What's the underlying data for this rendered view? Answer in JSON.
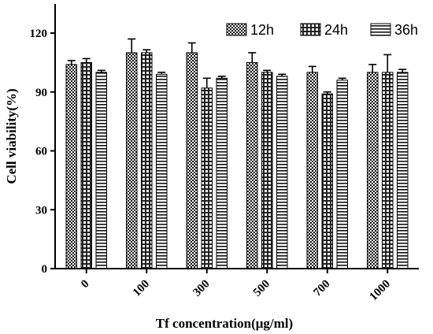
{
  "chart_data": {
    "type": "bar",
    "title": "",
    "xlabel": "Tf concentration(μg/ml)",
    "ylabel": "Cell viability(%)",
    "ylim": [
      0,
      130
    ],
    "yticks": [
      "0",
      "30",
      "60",
      "90",
      "120"
    ],
    "categories": [
      "0",
      "100",
      "300",
      "500",
      "700",
      "1000"
    ],
    "legend_position": "top-right",
    "grid": false,
    "series": [
      {
        "name": "12h",
        "pattern": "checker",
        "values": [
          104,
          110,
          110,
          105,
          100,
          100
        ],
        "errors": [
          2,
          7,
          5,
          5,
          3,
          4
        ]
      },
      {
        "name": "24h",
        "pattern": "dots",
        "values": [
          105,
          110,
          92,
          100,
          89,
          100
        ],
        "errors": [
          2,
          1.5,
          5,
          1,
          1,
          9
        ]
      },
      {
        "name": "36h",
        "pattern": "hlines",
        "values": [
          100,
          99,
          97,
          98,
          96,
          100
        ],
        "errors": [
          1,
          1,
          1,
          1,
          1,
          1.5
        ]
      }
    ]
  }
}
